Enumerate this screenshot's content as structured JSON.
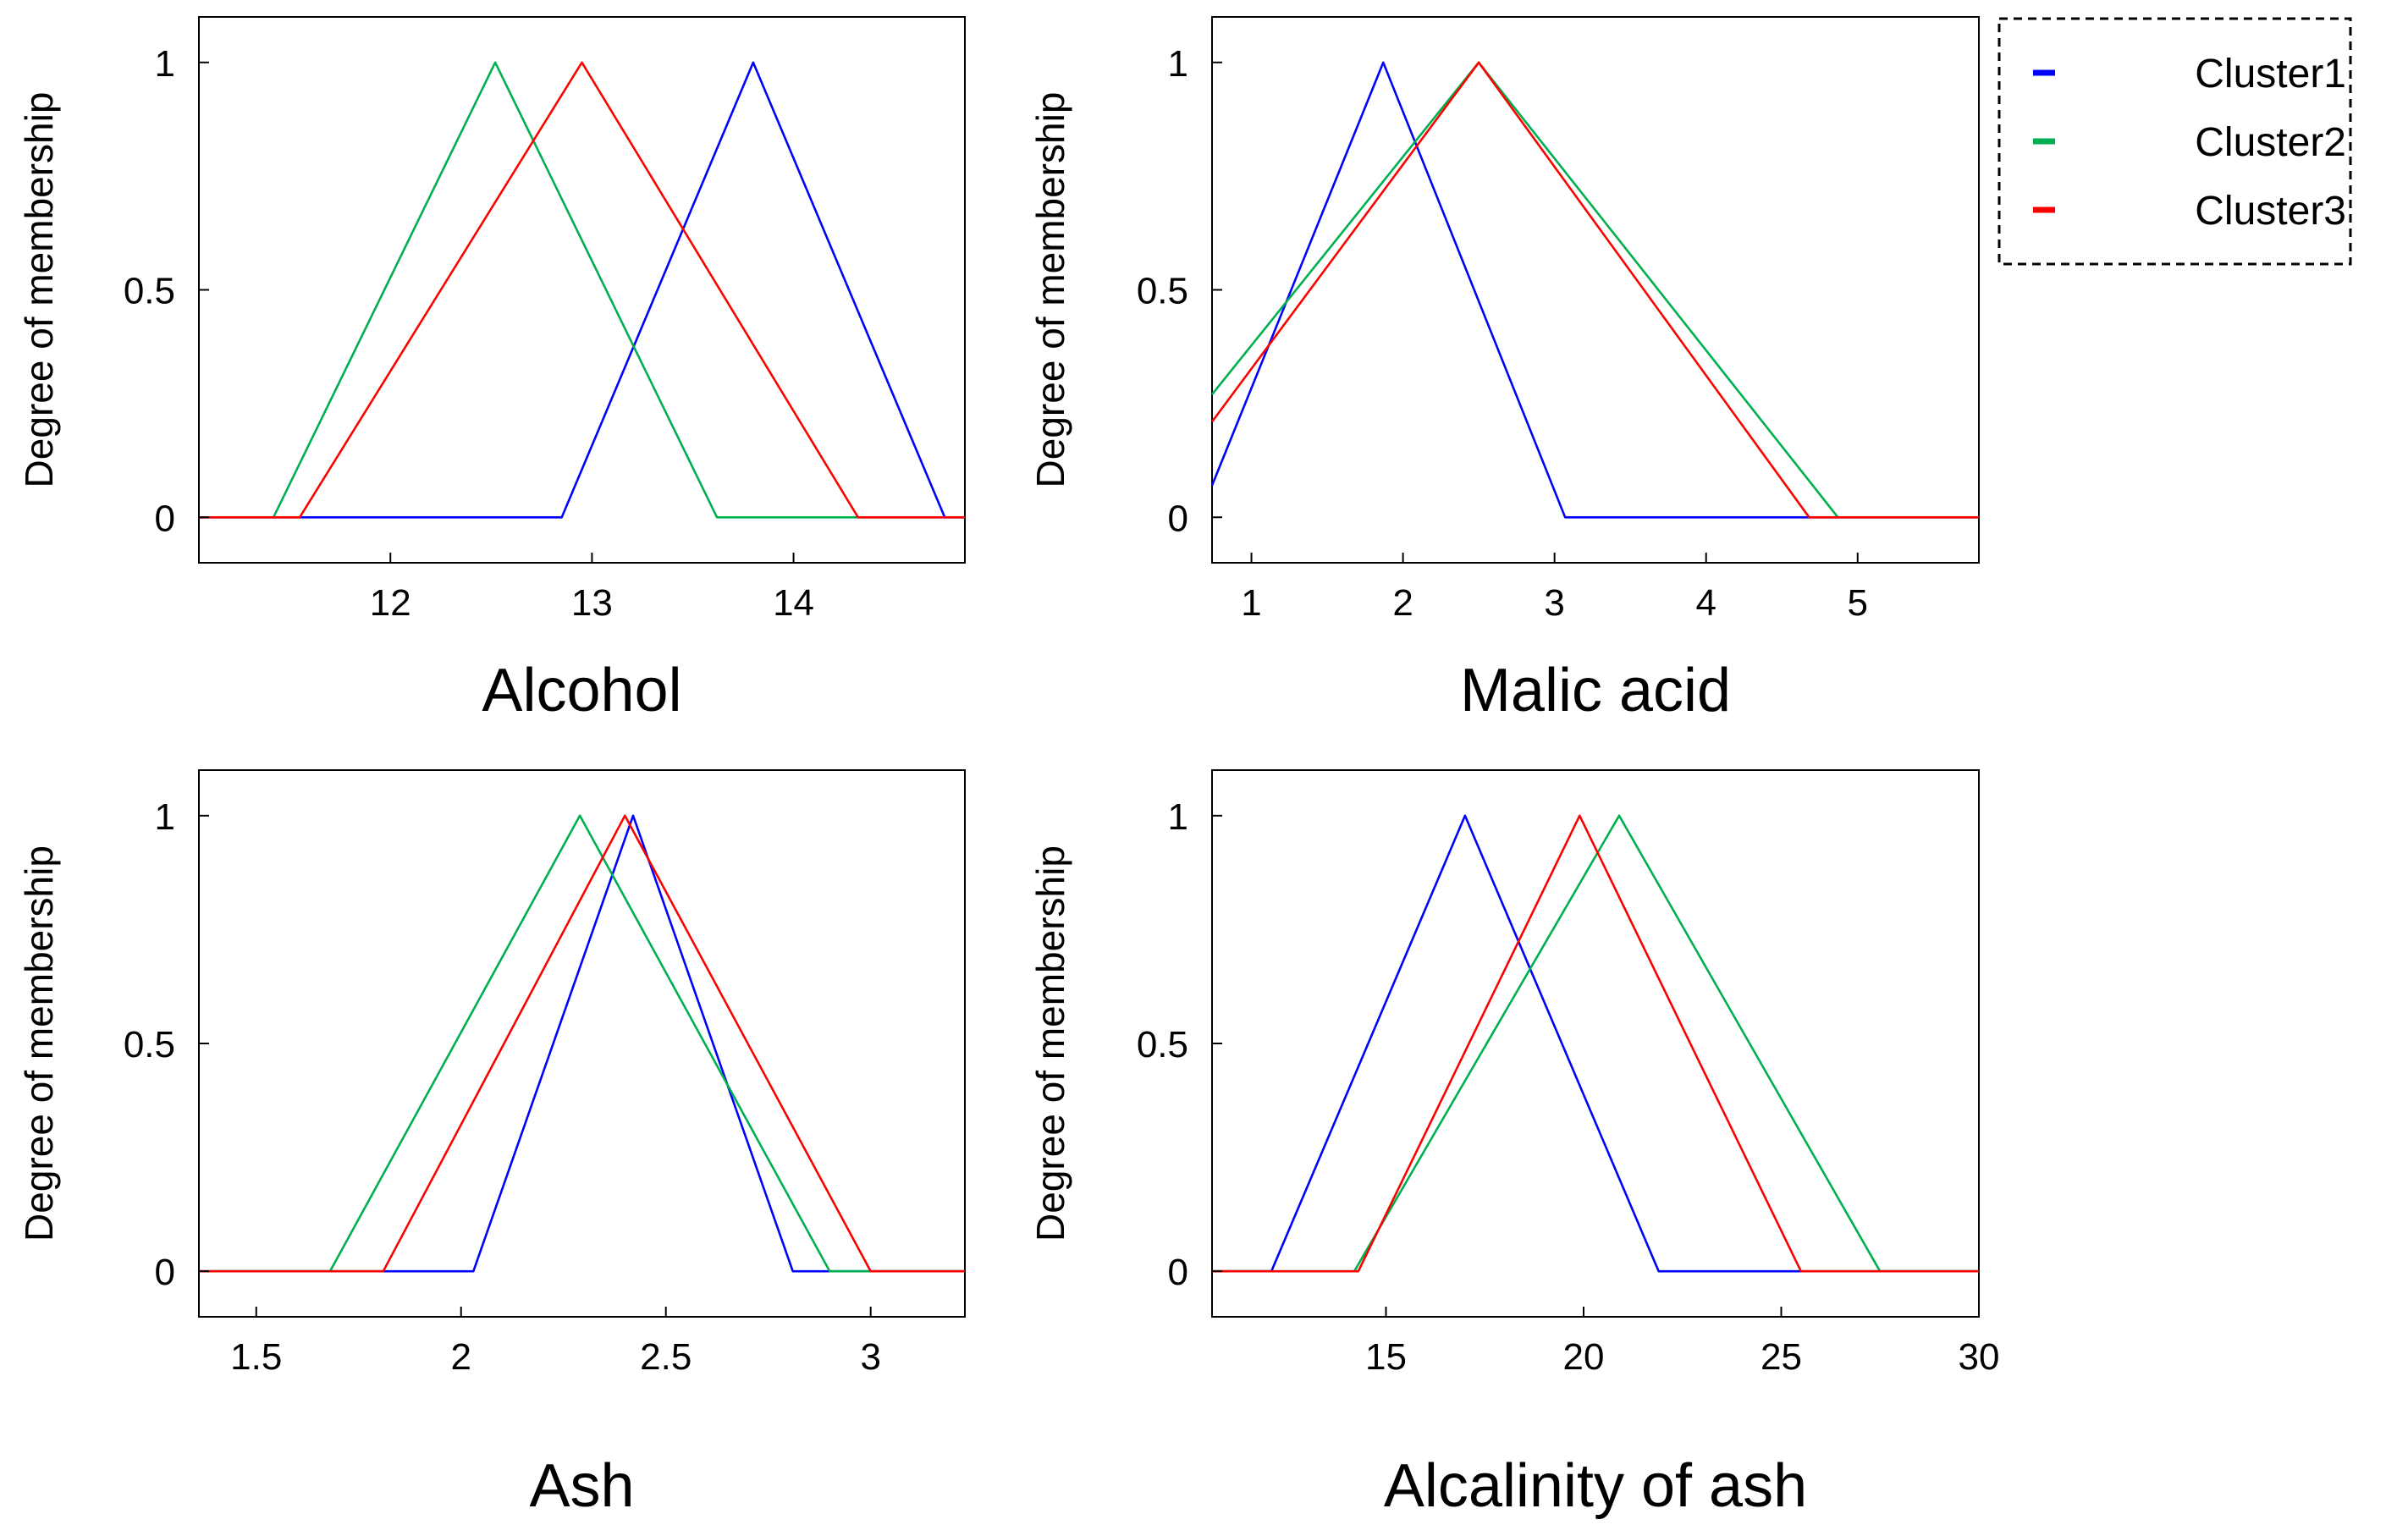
{
  "legend": {
    "entries": [
      {
        "label": "Cluster1",
        "color": "#0000ff"
      },
      {
        "label": "Cluster2",
        "color": "#00b050"
      },
      {
        "label": "Cluster3",
        "color": "#ff0000"
      }
    ]
  },
  "chart_data": [
    {
      "type": "line",
      "xlabel": "Alcohol",
      "ylabel": "Degree of membership",
      "xlim": [
        11.05,
        14.85
      ],
      "ylim": [
        -0.1,
        1.1
      ],
      "xticks": [
        12,
        13,
        14
      ],
      "xtick_labels": [
        "12",
        "13",
        "14"
      ],
      "yticks": [
        0,
        0.5,
        1
      ],
      "ytick_labels": [
        "0",
        "0.5",
        "1"
      ],
      "series": [
        {
          "name": "Cluster1",
          "color": "#0000ff",
          "x": [
            11.05,
            12.85,
            13.8,
            14.75,
            14.85
          ],
          "y": [
            0,
            0,
            1,
            0,
            0
          ]
        },
        {
          "name": "Cluster2",
          "color": "#00b050",
          "x": [
            11.05,
            11.42,
            12.52,
            13.62,
            14.85
          ],
          "y": [
            0,
            0,
            1,
            0,
            0
          ]
        },
        {
          "name": "Cluster3",
          "color": "#ff0000",
          "x": [
            11.05,
            11.55,
            12.95,
            14.32,
            14.85
          ],
          "y": [
            0,
            0,
            1,
            0,
            0
          ]
        }
      ]
    },
    {
      "type": "line",
      "xlabel": "Malic acid",
      "ylabel": "Degree of membership",
      "xlim": [
        0.74,
        5.8
      ],
      "ylim": [
        -0.1,
        1.1
      ],
      "xticks": [
        1,
        2,
        3,
        4,
        5
      ],
      "xtick_labels": [
        "1",
        "2",
        "3",
        "4",
        "5"
      ],
      "yticks": [
        0,
        0.5,
        1
      ],
      "ytick_labels": [
        "0",
        "0.5",
        "1"
      ],
      "series": [
        {
          "name": "Cluster1",
          "color": "#0000ff",
          "x": [
            0.74,
            1.87,
            3.07,
            5.8
          ],
          "y": [
            0.07,
            1,
            0,
            0
          ]
        },
        {
          "name": "Cluster2",
          "color": "#00b050",
          "x": [
            0.74,
            2.5,
            4.87,
            5.8
          ],
          "y": [
            0.27,
            1,
            0,
            0
          ]
        },
        {
          "name": "Cluster3",
          "color": "#ff0000",
          "x": [
            0.74,
            2.5,
            4.68,
            5.8
          ],
          "y": [
            0.21,
            1,
            0,
            0
          ]
        }
      ]
    },
    {
      "type": "line",
      "xlabel": "Ash",
      "ylabel": "Degree of membership",
      "xlim": [
        1.36,
        3.23
      ],
      "ylim": [
        -0.1,
        1.1
      ],
      "xticks": [
        1.5,
        2,
        2.5,
        3
      ],
      "xtick_labels": [
        "1.5",
        "2",
        "2.5",
        "3"
      ],
      "yticks": [
        0,
        0.5,
        1
      ],
      "ytick_labels": [
        "0",
        "0.5",
        "1"
      ],
      "series": [
        {
          "name": "Cluster1",
          "color": "#0000ff",
          "x": [
            1.36,
            2.03,
            2.42,
            2.81,
            3.23
          ],
          "y": [
            0,
            0,
            1,
            0,
            0
          ]
        },
        {
          "name": "Cluster2",
          "color": "#00b050",
          "x": [
            1.36,
            1.68,
            2.29,
            2.9,
            3.23
          ],
          "y": [
            0,
            0,
            1,
            0,
            0
          ]
        },
        {
          "name": "Cluster3",
          "color": "#ff0000",
          "x": [
            1.36,
            1.81,
            2.4,
            3.0,
            3.23
          ],
          "y": [
            0,
            0,
            1,
            0,
            0
          ]
        }
      ]
    },
    {
      "type": "line",
      "xlabel": "Alcalinity of ash",
      "ylabel": "Degree of membership",
      "xlim": [
        10.6,
        30.0
      ],
      "ylim": [
        -0.1,
        1.1
      ],
      "xticks": [
        15,
        20,
        25,
        30
      ],
      "xtick_labels": [
        "15",
        "20",
        "25",
        "30"
      ],
      "yticks": [
        0,
        0.5,
        1
      ],
      "ytick_labels": [
        "0",
        "0.5",
        "1"
      ],
      "series": [
        {
          "name": "Cluster1",
          "color": "#0000ff",
          "x": [
            10.6,
            12.1,
            17.0,
            21.9,
            30.0
          ],
          "y": [
            0,
            0,
            1,
            0,
            0
          ]
        },
        {
          "name": "Cluster2",
          "color": "#00b050",
          "x": [
            10.6,
            14.2,
            20.9,
            27.5,
            30.0
          ],
          "y": [
            0,
            0,
            1,
            0,
            0
          ]
        },
        {
          "name": "Cluster3",
          "color": "#ff0000",
          "x": [
            10.6,
            14.3,
            19.9,
            25.5,
            30.0
          ],
          "y": [
            0,
            0,
            1,
            0,
            0
          ]
        }
      ]
    }
  ]
}
